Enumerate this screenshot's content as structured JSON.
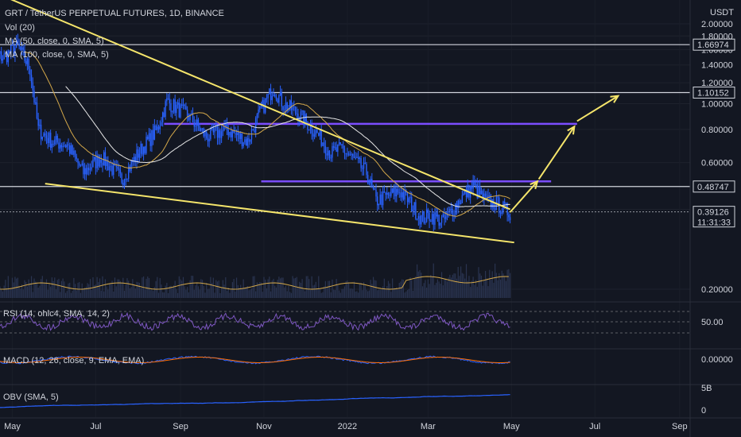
{
  "header": {
    "title": "GRT / TetherUS PERPETUAL FUTURES, 1D, BINANCE",
    "indicators": [
      "Vol (20)",
      "MA (50, close, 0, SMA, 5)",
      "MA (100, close, 0, SMA, 5)"
    ],
    "currency": "USDT"
  },
  "colors": {
    "background": "#131722",
    "candle": "#2962ff",
    "yellow_line": "#f5e56b",
    "purple_line": "#7b4dff",
    "white_line": "#d1d4dc",
    "ma50": "#d4a84a",
    "ma100": "#e8e8e8",
    "rsi": "#7e57c2",
    "macd": "#2962ff",
    "macd_signal": "#ff6d00",
    "obv": "#2962ff"
  },
  "chart_data": [
    {
      "type": "candlestick",
      "title": "GRT / TetherUS PERPETUAL FUTURES, 1D, BINANCE",
      "ylabel": "USDT",
      "y_scale": "log",
      "ylim": [
        0.18,
        2.05
      ],
      "y_ticks": [
        "2.00000",
        "1.80000",
        "1.60000",
        "1.40000",
        "1.20000",
        "1.00000",
        "0.80000",
        "0.60000",
        "0.40000",
        "0.20000"
      ],
      "x_ticks": [
        "May",
        "Jul",
        "Sep",
        "Nov",
        "2022",
        "Mar",
        "May",
        "Jul",
        "Sep"
      ],
      "price_tags": [
        {
          "label": "1.66974",
          "value": 1.66974
        },
        {
          "label": "1.10152",
          "value": 1.10152
        },
        {
          "label": "0.48747",
          "value": 0.48747
        },
        {
          "label": "0.39126",
          "value": 0.39126,
          "countdown": "11:31:33"
        }
      ],
      "horizontal_levels": [
        {
          "value": 1.66974,
          "color": "white"
        },
        {
          "value": 1.10152,
          "color": "white"
        },
        {
          "value": 0.48747,
          "color": "white"
        },
        {
          "value": 0.84,
          "color": "purple"
        },
        {
          "value": 0.51,
          "color": "purple"
        }
      ],
      "trendlines": [
        {
          "from": [
            "2021-04-20",
            2.6
          ],
          "to": [
            "2022-04-30",
            0.4
          ]
        },
        {
          "from": [
            "2021-05-25",
            0.5
          ],
          "to": [
            "2022-05-03",
            0.3
          ]
        }
      ],
      "projection_arrows": [
        {
          "from": [
            "2022-04-30",
            0.39
          ],
          "to": [
            "2022-05-20",
            0.51
          ]
        },
        {
          "from": [
            "2022-05-21",
            0.52
          ],
          "to": [
            "2022-06-16",
            0.82
          ]
        },
        {
          "from": [
            "2022-06-18",
            0.86
          ],
          "to": [
            "2022-07-18",
            1.07
          ]
        }
      ],
      "price_path": [
        [
          "2021-04-10",
          1.55
        ],
        [
          "2021-04-25",
          1.5
        ],
        [
          "2021-05-05",
          1.65
        ],
        [
          "2021-05-14",
          1.35
        ],
        [
          "2021-05-20",
          0.8
        ],
        [
          "2021-05-30",
          0.72
        ],
        [
          "2021-06-10",
          0.7
        ],
        [
          "2021-06-22",
          0.55
        ],
        [
          "2021-07-05",
          0.63
        ],
        [
          "2021-07-20",
          0.52
        ],
        [
          "2021-08-01",
          0.65
        ],
        [
          "2021-08-15",
          0.8
        ],
        [
          "2021-08-22",
          1.02
        ],
        [
          "2021-09-07",
          0.9
        ],
        [
          "2021-09-20",
          0.75
        ],
        [
          "2021-10-05",
          0.8
        ],
        [
          "2021-10-20",
          0.72
        ],
        [
          "2021-10-30",
          0.95
        ],
        [
          "2021-11-08",
          1.15
        ],
        [
          "2021-11-15",
          1.0
        ],
        [
          "2021-11-26",
          0.92
        ],
        [
          "2021-12-05",
          0.82
        ],
        [
          "2021-12-12",
          0.75
        ],
        [
          "2021-12-20",
          0.65
        ],
        [
          "2021-12-28",
          0.68
        ],
        [
          "2022-01-05",
          0.62
        ],
        [
          "2022-01-15",
          0.55
        ],
        [
          "2022-01-22",
          0.43
        ],
        [
          "2022-02-08",
          0.47
        ],
        [
          "2022-02-15",
          0.43
        ],
        [
          "2022-02-24",
          0.37
        ],
        [
          "2022-03-03",
          0.38
        ],
        [
          "2022-03-12",
          0.36
        ],
        [
          "2022-03-25",
          0.44
        ],
        [
          "2022-04-03",
          0.49
        ],
        [
          "2022-04-12",
          0.43
        ],
        [
          "2022-04-20",
          0.42
        ],
        [
          "2022-04-29",
          0.39
        ]
      ]
    },
    {
      "type": "line",
      "title": "RSI (14, ohlc4, SMA, 14, 2)",
      "y_ticks": [
        "50.00"
      ]
    },
    {
      "type": "line",
      "title": "MACD (12, 26, close, 9, EMA, EMA)",
      "y_ticks": [
        "0.00000"
      ]
    },
    {
      "type": "line",
      "title": "OBV (SMA, 5)",
      "y_ticks": [
        "5B",
        "0"
      ]
    }
  ]
}
